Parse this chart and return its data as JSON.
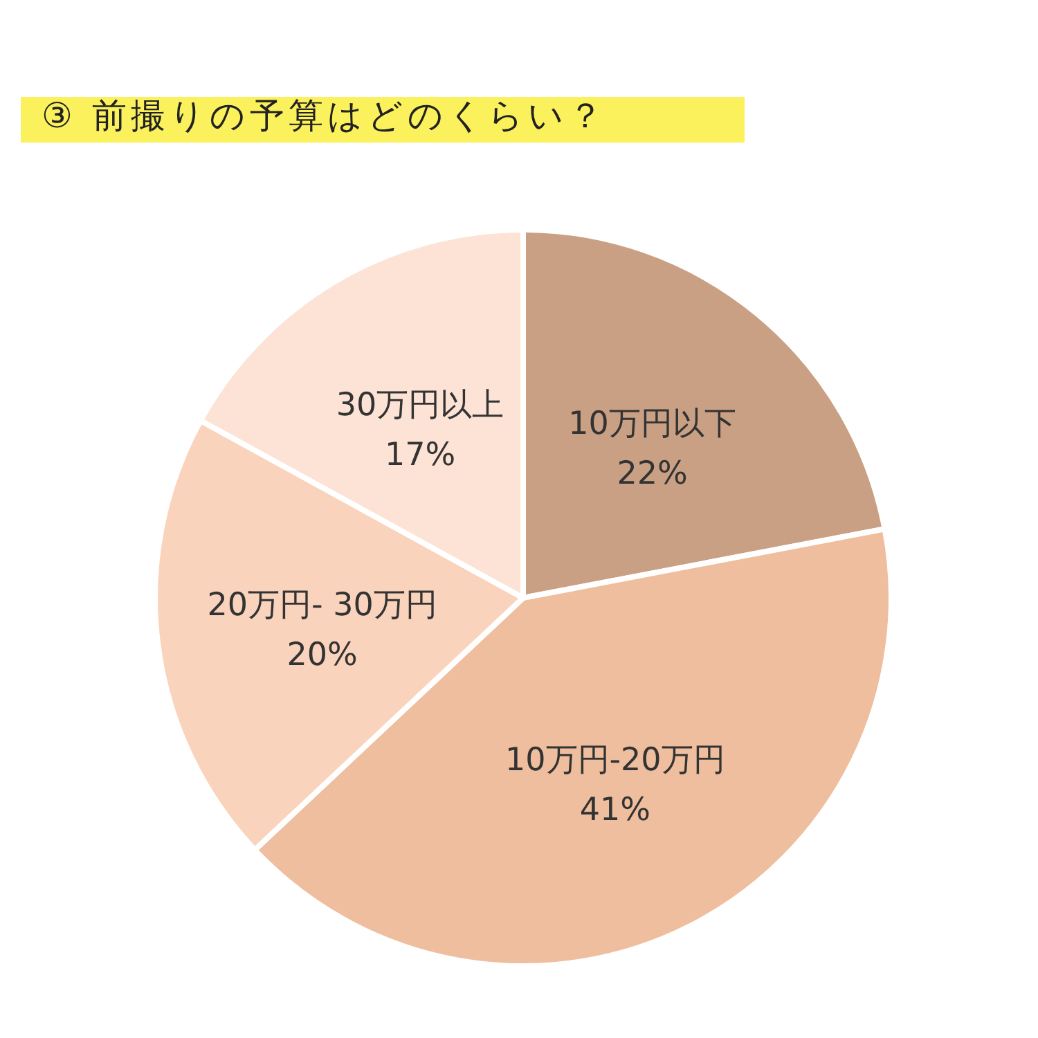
{
  "chart_data": {
    "type": "pie",
    "title": "③ 前撮りの予算はどのくらい？",
    "categories": [
      "10万円以下",
      "10万円-20万円",
      "20万円- 30万円",
      "30万円以上"
    ],
    "values": [
      22,
      41,
      20,
      17
    ],
    "colors": [
      "#c9a084",
      "#efbe9e",
      "#fad3bc",
      "#fde3d5"
    ],
    "value_labels": [
      "22%",
      "41%",
      "20%",
      "17%"
    ]
  }
}
